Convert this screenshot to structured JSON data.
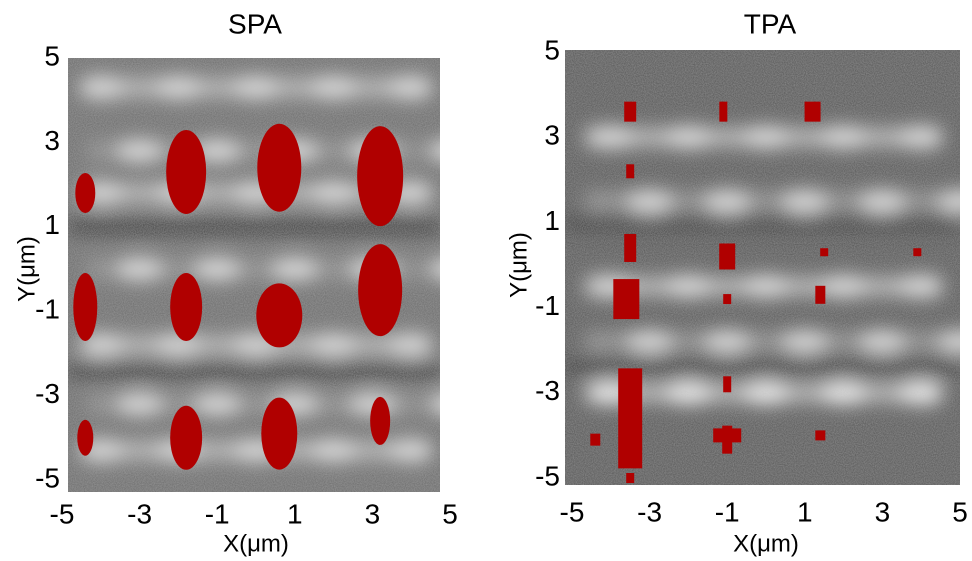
{
  "chart_data": [
    {
      "type": "image",
      "title": "SPA",
      "xlabel": "X(μm)",
      "ylabel": "Y(μm)",
      "xlim": [
        -5,
        5
      ],
      "ylim": [
        -5,
        5
      ],
      "xticks": [
        -5,
        -3,
        -1,
        1,
        3,
        5
      ],
      "yticks": [
        5,
        3,
        1,
        -1,
        -3,
        -5
      ]
    },
    {
      "type": "image",
      "title": "TPA",
      "xlabel": "X(μm)",
      "ylabel": "Y(μm)",
      "xlim": [
        -5,
        5
      ],
      "ylim": [
        -5,
        5
      ],
      "xticks": [
        -5,
        -3,
        -1,
        1,
        3,
        5
      ],
      "yticks": [
        5,
        3,
        1,
        -1,
        -3,
        -5
      ]
    }
  ]
}
